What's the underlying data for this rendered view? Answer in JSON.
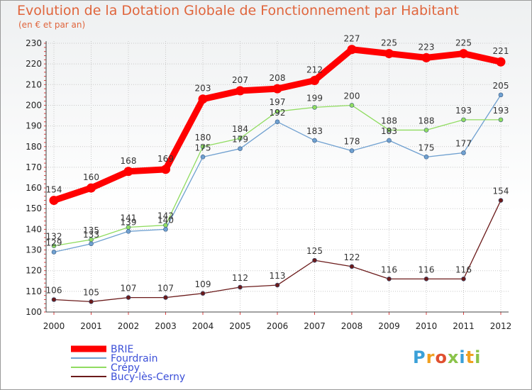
{
  "header": {
    "title": "Evolution de la Dotation Globale de Fonctionnement par Habitant",
    "subtitle": "(en € et par an)"
  },
  "brand": {
    "logo_text": "Proxiti"
  },
  "chart_data": {
    "type": "line",
    "title": "Evolution de la Dotation Globale de Fonctionnement par Habitant",
    "subtitle": "(en € et par an)",
    "xlabel": "",
    "ylabel": "",
    "ylim": [
      100,
      230
    ],
    "yticks": [
      100,
      110,
      120,
      130,
      140,
      150,
      160,
      170,
      180,
      190,
      200,
      210,
      220,
      230
    ],
    "categories": [
      "2000",
      "2001",
      "2002",
      "2003",
      "2004",
      "2005",
      "2006",
      "2007",
      "2008",
      "2009",
      "2010",
      "2011",
      "2012"
    ],
    "grid": true,
    "legend_position": "bottom-left",
    "series": [
      {
        "name": "BRIE",
        "color": "#ff0000",
        "emphasis": true,
        "values": [
          154,
          160,
          168,
          169,
          203,
          207,
          208,
          212,
          227,
          225,
          223,
          225,
          221
        ]
      },
      {
        "name": "Fourdrain",
        "color": "#6fa0d0",
        "emphasis": false,
        "values": [
          129,
          133,
          139,
          140,
          175,
          179,
          192,
          183,
          178,
          183,
          175,
          177,
          205
        ]
      },
      {
        "name": "Crépy",
        "color": "#90dc60",
        "emphasis": false,
        "values": [
          132,
          135,
          141,
          142,
          180,
          184,
          197,
          199,
          200,
          188,
          188,
          193,
          193
        ]
      },
      {
        "name": "Bucy-lès-Cerny",
        "color": "#6b1a1a",
        "emphasis": false,
        "values": [
          106,
          105,
          107,
          107,
          109,
          112,
          113,
          125,
          122,
          116,
          116,
          116,
          154
        ]
      }
    ]
  }
}
